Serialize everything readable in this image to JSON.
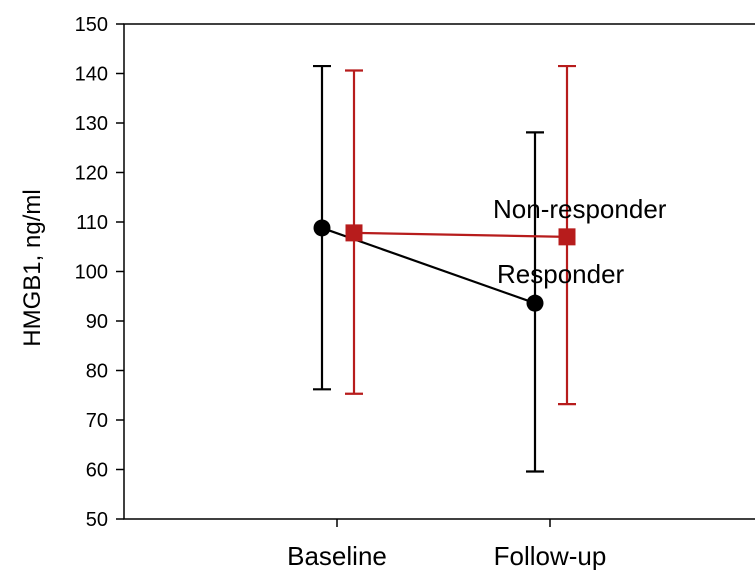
{
  "chart_data": {
    "type": "line",
    "ylabel": "HMGB1, ng/ml",
    "xlabel": "",
    "ylim": [
      50,
      150
    ],
    "yticks": [
      50,
      60,
      70,
      80,
      90,
      100,
      110,
      120,
      130,
      140,
      150
    ],
    "categories": [
      "Baseline",
      "Follow-up"
    ],
    "grid": false,
    "series": [
      {
        "name": "Responder",
        "color": "#000000",
        "marker": "circle",
        "values": [
          108.8,
          93.6
        ],
        "error_low": [
          76.2,
          59.6
        ],
        "error_high": [
          141.5,
          128.1
        ]
      },
      {
        "name": "Non-responder",
        "color": "#b71c1c",
        "marker": "square",
        "values": [
          107.8,
          107.0
        ],
        "error_low": [
          75.3,
          73.2
        ],
        "error_high": [
          140.6,
          141.5
        ]
      }
    ]
  }
}
